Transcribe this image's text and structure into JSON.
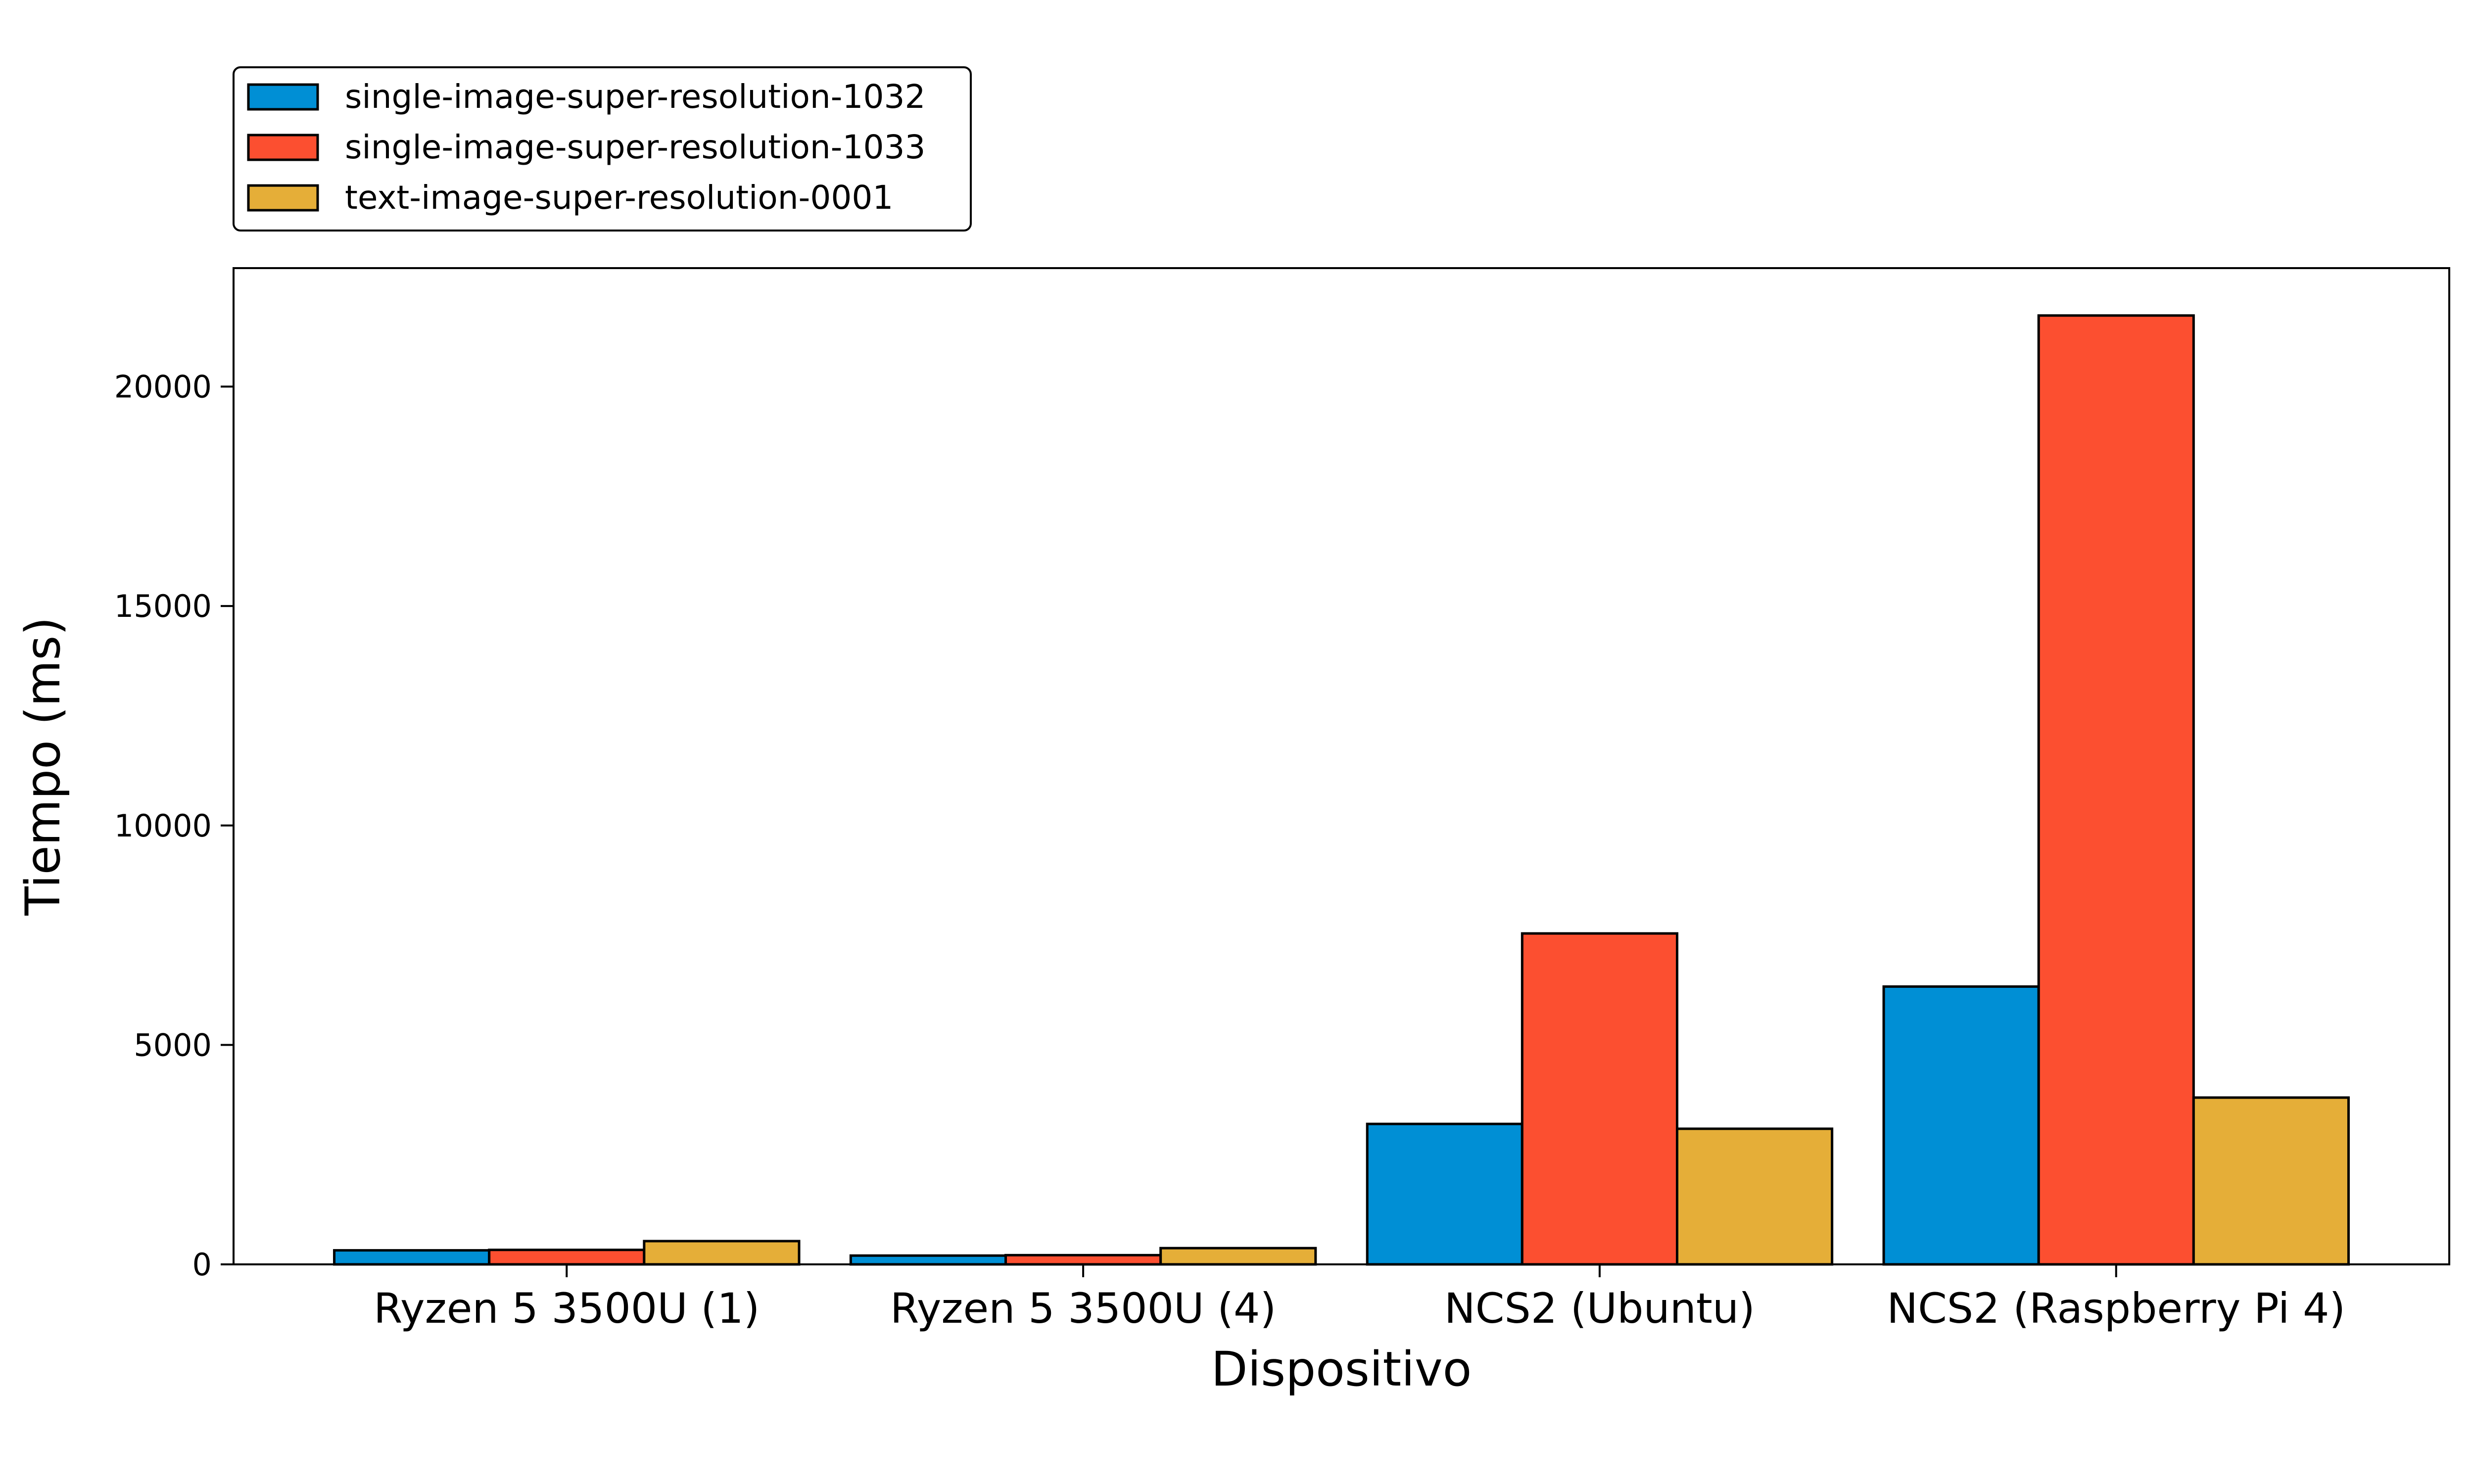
{
  "chart_data": {
    "type": "bar",
    "title": "",
    "xlabel": "Dispositivo",
    "ylabel": "Tiempo (ms)",
    "categories": [
      "Ryzen 5 3500U (1)",
      "Ryzen 5 3500U (4)",
      "NCS2 (Ubuntu)",
      "NCS2 (Raspberry Pi 4)"
    ],
    "series": [
      {
        "name": "single-image-super-resolution-1032",
        "color": "#008fd5",
        "values": [
          320,
          200,
          3200,
          6330
        ]
      },
      {
        "name": "single-image-super-resolution-1033",
        "color": "#fc4f30",
        "values": [
          330,
          210,
          7540,
          21620
        ]
      },
      {
        "name": "text-image-super-resolution-0001",
        "color": "#e5ae38",
        "values": [
          530,
          370,
          3090,
          3800
        ]
      }
    ],
    "ylim": [
      0,
      22700
    ],
    "yticks": [
      0,
      5000,
      10000,
      15000,
      20000
    ],
    "ytick_labels": [
      "0",
      "5000",
      "10000",
      "15000",
      "20000"
    ],
    "grid": false,
    "legend": {
      "placement": "top-left, above plot"
    }
  }
}
